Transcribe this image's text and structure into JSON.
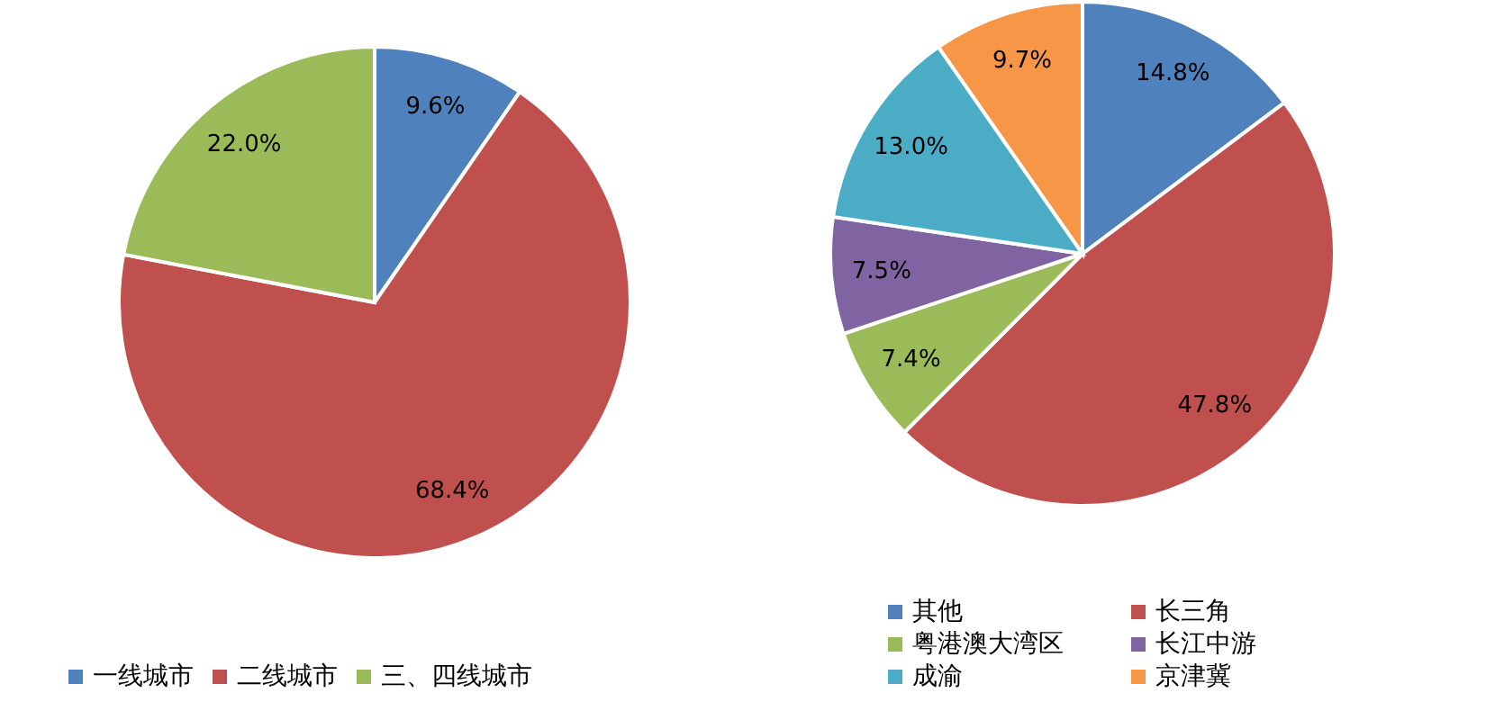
{
  "chart_data": [
    {
      "type": "pie",
      "categories": [
        "一线城市",
        "二线城市",
        "三、四线城市"
      ],
      "values": [
        9.6,
        68.4,
        22.0
      ],
      "colors": [
        "#4f81bd",
        "#c0504d",
        "#9bbb59"
      ],
      "value_labels": [
        "9.6%",
        "68.4%",
        "22.0%"
      ],
      "legend": "bottom"
    },
    {
      "type": "pie",
      "categories": [
        "其他",
        "长三角",
        "粤港澳大湾区",
        "长江中游",
        "成渝",
        "京津冀"
      ],
      "values": [
        14.8,
        47.8,
        7.4,
        7.5,
        13.0,
        9.7
      ],
      "colors": [
        "#4f81bd",
        "#c0504d",
        "#9bbb59",
        "#8064a2",
        "#4bacc6",
        "#f79646"
      ],
      "value_labels": [
        "14.8%",
        "47.8%",
        "7.4%",
        "7.5%",
        "13.0%",
        "9.7%"
      ],
      "legend": "bottom"
    }
  ]
}
